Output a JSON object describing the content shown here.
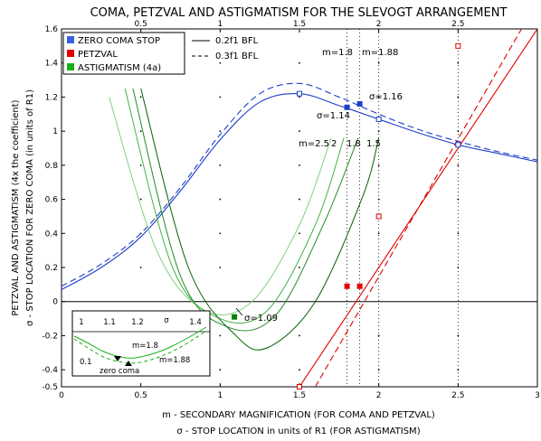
{
  "chart_data": {
    "type": "line",
    "title": "COMA, PETZVAL AND ASTIGMATISM FOR THE SLEVOGT ARRANGEMENT",
    "xlabel": "m - SECONDARY MAGNIFICATION (FOR COMA AND PETZVAL)",
    "xlabel2": "σ - STOP LOCATION in units of R1 (FOR ASTIGMATISM)",
    "ylabel": "PETZVAL AND ASTIGMATISM (4x the coefficient)",
    "ylabel2": "σ - STOP LOCATION FOR ZERO COMA (in units of R1)",
    "xlim": [
      0,
      3
    ],
    "ylim": [
      -0.5,
      1.6
    ],
    "x_ticks": [
      "0",
      "0.5",
      "1",
      "1.5",
      "2",
      "2.5",
      "3"
    ],
    "top_ticks": [
      "0.5",
      "1",
      "1.5",
      "2",
      "2.5"
    ],
    "y_ticks": [
      "-0.5",
      "-0.4",
      "-0.2",
      "0",
      "0.2",
      "0.4",
      "0.6",
      "0.8",
      "1",
      "1.2",
      "1.4",
      "1.6"
    ],
    "y_values": [
      -0.5,
      -0.4,
      -0.2,
      0,
      0.2,
      0.4,
      0.6,
      0.8,
      1,
      1.2,
      1.4,
      1.6
    ],
    "legend": {
      "position": "top-left",
      "items": [
        {
          "label": "ZERO COMA STOP",
          "color": "#3a5fe0"
        },
        {
          "label": "PETZVAL",
          "color": "#e00000"
        },
        {
          "label": "ASTIGMATISM (4a)",
          "color": "#19b019"
        }
      ],
      "line_items": [
        {
          "label": "0.2f1 BFL",
          "style": "solid"
        },
        {
          "label": "0.3f1 BFL",
          "style": "dashed"
        }
      ]
    },
    "series": [
      {
        "name": "ZERO COMA STOP",
        "style": "solid",
        "color": "#1d3fc8",
        "x": [
          0,
          0.25,
          0.5,
          0.75,
          1,
          1.25,
          1.5,
          1.75,
          2,
          2.25,
          2.5,
          2.75,
          3
        ],
        "y": [
          0.07,
          0.2,
          0.38,
          0.65,
          0.95,
          1.17,
          1.22,
          1.15,
          1.07,
          0.99,
          0.92,
          0.87,
          0.82
        ]
      },
      {
        "name": "ZERO COMA STOP",
        "style": "dashed",
        "color": "#1d3fc8",
        "x": [
          0,
          0.25,
          0.5,
          0.75,
          1,
          1.25,
          1.5,
          1.75,
          2,
          2.25,
          2.5,
          2.75,
          3
        ],
        "y": [
          0.09,
          0.22,
          0.4,
          0.67,
          0.98,
          1.22,
          1.28,
          1.2,
          1.1,
          1.01,
          0.94,
          0.88,
          0.83
        ]
      },
      {
        "name": "PETZVAL",
        "style": "solid",
        "color": "#e00000",
        "x": [
          1.5,
          3
        ],
        "y": [
          -0.5,
          1.6
        ]
      },
      {
        "name": "PETZVAL",
        "style": "dashed",
        "color": "#e00000",
        "x": [
          1.6,
          2.9
        ],
        "y": [
          -0.5,
          1.6
        ]
      }
    ],
    "astigmatism_curves": [
      {
        "m": "2.5",
        "color": "#7fd27f",
        "x": [
          0.3,
          0.6,
          0.9,
          1.2,
          1.5,
          1.7
        ],
        "y": [
          1.2,
          0.3,
          -0.05,
          0.0,
          0.45,
          0.96
        ]
      },
      {
        "m": "2",
        "color": "#3fb33f",
        "x": [
          0.4,
          0.7,
          1.0,
          1.3,
          1.6,
          1.78
        ],
        "y": [
          1.25,
          0.2,
          -0.1,
          -0.05,
          0.45,
          0.96
        ]
      },
      {
        "m": "1.8",
        "color": "#228b22",
        "x": [
          0.45,
          0.75,
          1.05,
          1.35,
          1.65,
          1.87
        ],
        "y": [
          1.25,
          0.15,
          -0.15,
          -0.08,
          0.45,
          0.96
        ]
      },
      {
        "m": "1.5",
        "color": "#006400",
        "x": [
          0.5,
          0.8,
          1.1,
          1.3,
          1.6,
          1.9,
          2.0
        ],
        "y": [
          1.25,
          0.2,
          -0.2,
          -0.27,
          0.0,
          0.62,
          0.96
        ]
      }
    ],
    "markers": {
      "blue_filled": [
        [
          1.8,
          1.14
        ],
        [
          1.88,
          1.16
        ]
      ],
      "blue_open": [
        [
          1.5,
          1.22
        ],
        [
          2.0,
          1.07
        ],
        [
          2.5,
          0.92
        ]
      ],
      "red_filled": [
        [
          1.8,
          0.09
        ],
        [
          1.88,
          0.09
        ]
      ],
      "red_open": [
        [
          1.5,
          -0.5
        ],
        [
          2.0,
          0.5
        ],
        [
          2.5,
          1.5
        ]
      ],
      "green_filled": [
        [
          1.09,
          -0.09
        ]
      ]
    },
    "vlines": [
      1.8,
      1.88,
      2.0,
      2.5
    ],
    "annotations": {
      "m18": "m=1.8",
      "m188": "m=1.88",
      "sigma116": "σ=1.16",
      "sigma114": "σ=1.14",
      "sigma109": "σ=1.09",
      "m_labels": [
        "m=2.5",
        "2",
        "1.8",
        "1.5"
      ]
    },
    "inset": {
      "ticks": [
        "1",
        "1.1",
        "1.2",
        "σ",
        "1.4"
      ],
      "y_label": "0.1",
      "labels": [
        "m=1.8",
        "m=1.88",
        "zero coma"
      ]
    }
  }
}
